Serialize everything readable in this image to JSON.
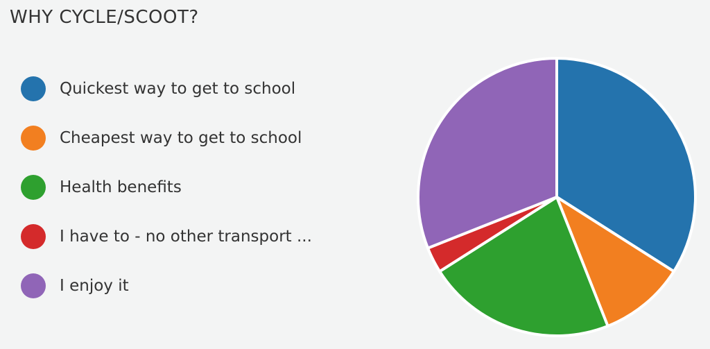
{
  "title": "WHY CYCLE/SCOOT?",
  "legend": [
    {
      "label": "Quickest way to get to school",
      "color": "#2473ad"
    },
    {
      "label": "Cheapest way to get to school",
      "color": "#f27f20"
    },
    {
      "label": "Health benefits",
      "color": "#2ea02f"
    },
    {
      "label": "I have to - no other transport ...",
      "color": "#d42a2b"
    },
    {
      "label": "I enjoy it",
      "color": "#9065b7"
    }
  ],
  "chart_data": {
    "type": "pie",
    "title": "WHY CYCLE/SCOOT?",
    "categories": [
      "Quickest way to get to school",
      "Cheapest way to get to school",
      "Health benefits",
      "I have to - no other transport ...",
      "I enjoy it"
    ],
    "values": [
      34,
      10,
      22,
      3,
      31
    ],
    "unit": "percent",
    "colors": [
      "#2473ad",
      "#f27f20",
      "#2ea02f",
      "#d42a2b",
      "#9065b7"
    ],
    "legend": "left"
  }
}
